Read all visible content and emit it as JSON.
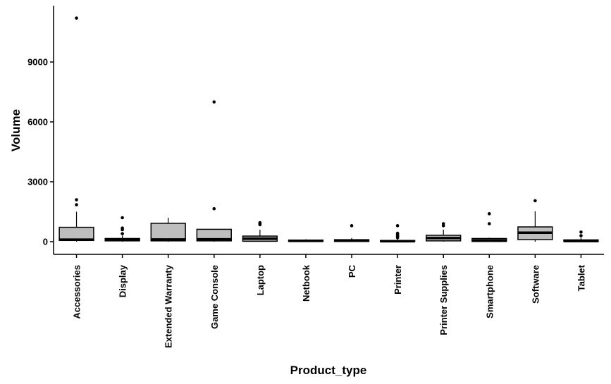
{
  "chart_data": {
    "type": "box",
    "xlabel": "Product_type",
    "ylabel": "Volume",
    "ylim": [
      -450,
      11400
    ],
    "yticks": [
      0,
      3000,
      6000,
      9000
    ],
    "grid": false,
    "legend": "none",
    "colors": {
      "box_fill": "#bebebe",
      "stroke": "#000000"
    },
    "categories": [
      "Accessories",
      "Display",
      "Extended Warranty",
      "Game Console",
      "Laptop",
      "Netbook",
      "PC",
      "Printer",
      "Printer Supplies",
      "Smartphone",
      "Software",
      "Tablet"
    ],
    "boxes": [
      {
        "min": 0,
        "q1": 60,
        "median": 100,
        "q3": 720,
        "max": 1500,
        "outliers": [
          1850,
          2100,
          11200
        ]
      },
      {
        "min": 0,
        "q1": 40,
        "median": 90,
        "q3": 160,
        "max": 300,
        "outliers": [
          400,
          600,
          680,
          1200
        ]
      },
      {
        "min": 0,
        "q1": 40,
        "median": 110,
        "q3": 920,
        "max": 1200,
        "outliers": []
      },
      {
        "min": 0,
        "q1": 40,
        "median": 120,
        "q3": 620,
        "max": 640,
        "outliers": [
          1650,
          7000
        ]
      },
      {
        "min": 0,
        "q1": 20,
        "median": 150,
        "q3": 280,
        "max": 600,
        "outliers": [
          850,
          900,
          950
        ]
      },
      {
        "min": 0,
        "q1": 10,
        "median": 40,
        "q3": 80,
        "max": 120,
        "outliers": []
      },
      {
        "min": 0,
        "q1": 10,
        "median": 50,
        "q3": 100,
        "max": 180,
        "outliers": [
          800
        ]
      },
      {
        "min": 0,
        "q1": 5,
        "median": 20,
        "q3": 60,
        "max": 150,
        "outliers": [
          200,
          260,
          300,
          350,
          420,
          800
        ]
      },
      {
        "min": 0,
        "q1": 40,
        "median": 180,
        "q3": 320,
        "max": 600,
        "outliers": [
          800,
          900
        ]
      },
      {
        "min": 0,
        "q1": 10,
        "median": 60,
        "q3": 160,
        "max": 200,
        "outliers": [
          900,
          1400
        ]
      },
      {
        "min": 0,
        "q1": 100,
        "median": 450,
        "q3": 740,
        "max": 1520,
        "outliers": [
          2050
        ]
      },
      {
        "min": 0,
        "q1": 5,
        "median": 30,
        "q3": 90,
        "max": 200,
        "outliers": [
          300,
          480
        ]
      }
    ]
  }
}
